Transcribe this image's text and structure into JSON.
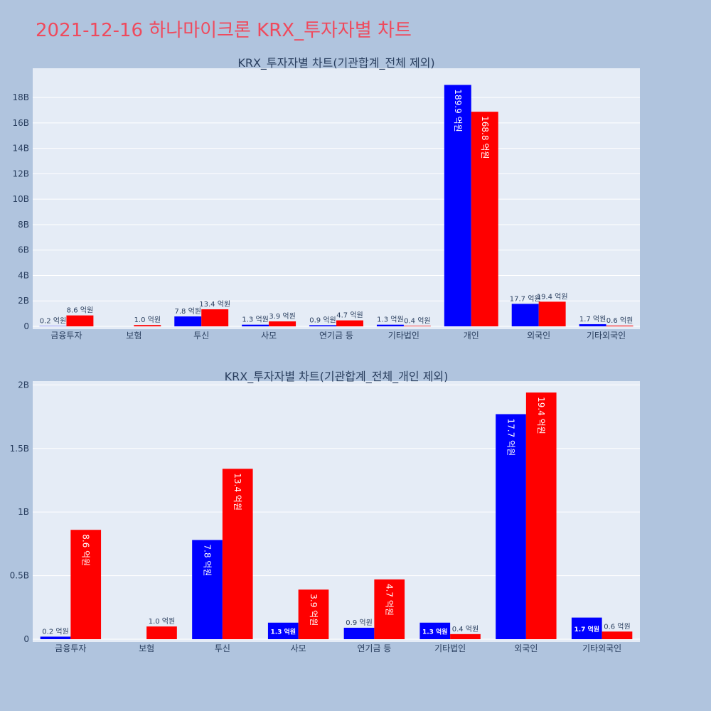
{
  "title": "2021-12-16 하나마이크론 KRX_투자자별 차트",
  "colors": {
    "background": "#b0c4de",
    "plot_bg": "#e5ecf6",
    "title": "#ef4a5d",
    "sell": "#0000ff",
    "buy": "#ff0000"
  },
  "chart_data": [
    {
      "type": "bar",
      "title": "KRX_투자자별 차트(기관합계_전체 제외)",
      "categories": [
        "금융투자",
        "보험",
        "투신",
        "사모",
        "연기금 등",
        "기타법인",
        "개인",
        "외국인",
        "기타외국인"
      ],
      "series": [
        {
          "color": "#0000ff",
          "values": [
            0.02,
            0,
            0.78,
            0.13,
            0.09,
            0.13,
            18.99,
            1.77,
            0.17
          ],
          "labels": [
            "0.2 억원",
            "",
            "7.8 억원",
            "1.3 억원",
            "0.9 억원",
            "1.3 억원",
            "189.9 억원",
            "17.7 억원",
            "1.7 억원"
          ]
        },
        {
          "color": "#ff0000",
          "values": [
            0.86,
            0.1,
            1.34,
            0.39,
            0.47,
            0.04,
            16.88,
            1.94,
            0.06
          ],
          "labels": [
            "8.6 억원",
            "1.0 억원",
            "13.4 억원",
            "3.9 억원",
            "4.7 억원",
            "0.4 억원",
            "168.8 억원",
            "19.4 억원",
            "0.6 억원"
          ]
        }
      ],
      "ylim": [
        0,
        20.3
      ],
      "yticks": [
        0,
        2,
        4,
        6,
        8,
        10,
        12,
        14,
        16,
        18
      ],
      "ytick_labels": [
        "0",
        "2B",
        "4B",
        "6B",
        "8B",
        "10B",
        "12B",
        "14B",
        "16B",
        "18B"
      ],
      "grid": true
    },
    {
      "type": "bar",
      "title": "KRX_투자자별 차트(기관합계_전체_개인 제외)",
      "categories": [
        "금융투자",
        "보험",
        "투신",
        "사모",
        "연기금 등",
        "기타법인",
        "외국인",
        "기타외국인"
      ],
      "series": [
        {
          "color": "#0000ff",
          "values": [
            0.02,
            0,
            0.78,
            0.13,
            0.09,
            0.13,
            1.77,
            0.17
          ],
          "labels": [
            "0.2 억원",
            "",
            "7.8 억원",
            "1.3 억원",
            "0.9 억원",
            "1.3 억원",
            "17.7 억원",
            "1.7 억원"
          ]
        },
        {
          "color": "#ff0000",
          "values": [
            0.86,
            0.1,
            1.34,
            0.39,
            0.47,
            0.04,
            1.94,
            0.06
          ],
          "labels": [
            "8.6 억원",
            "1.0 억원",
            "13.4 억원",
            "3.9 억원",
            "4.7 억원",
            "0.4 억원",
            "19.4 억원",
            "0.6 억원"
          ]
        }
      ],
      "ylim": [
        0,
        2.03
      ],
      "yticks": [
        0,
        0.5,
        1,
        1.5,
        2
      ],
      "ytick_labels": [
        "0",
        "0.5B",
        "1B",
        "1.5B",
        "2B"
      ],
      "grid": true
    }
  ]
}
